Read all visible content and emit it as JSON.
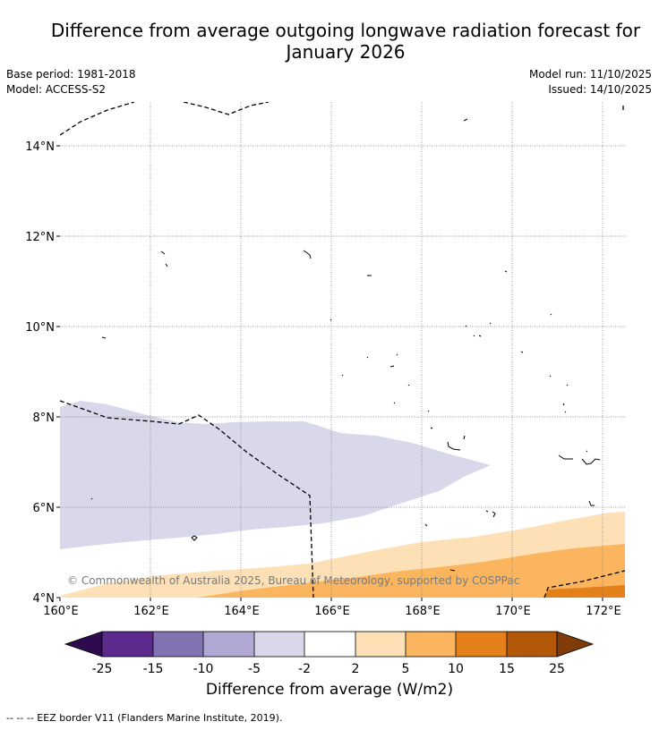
{
  "title_line1": "Difference from average outgoing longwave radiation forecast for",
  "title_line2": "January 2026",
  "base_period": "Base period: 1981-2018",
  "model": "Model: ACCESS-S2",
  "model_run": "Model run: 11/10/2025",
  "issued": "Issued: 14/10/2025",
  "copyright": "© Commonwealth of Australia 2025, Bureau of Meteorology, supported by COSPPac",
  "lat_labels": [
    "14°N",
    "12°N",
    "10°N",
    "8°N",
    "6°N",
    "4°N"
  ],
  "lon_labels": [
    "160°E",
    "162°E",
    "164°E",
    "166°E",
    "168°E",
    "170°E",
    "172°E"
  ],
  "colorbar": {
    "title": "Difference from average (W/m2)",
    "ticks": [
      "-25",
      "-15",
      "-10",
      "-5",
      "-2",
      "2",
      "5",
      "10",
      "15",
      "25"
    ],
    "colors": [
      "#2d0a4e",
      "#5b2a8c",
      "#8274b2",
      "#b1a8d3",
      "#d8d8ea",
      "#ffffff",
      "#fde0b5",
      "#fab55e",
      "#e3801a",
      "#b35806",
      "#7f3b08"
    ]
  },
  "legend_text": "--  --  -- EEZ border V11 (Flanders Marine Institute, 2019)."
}
